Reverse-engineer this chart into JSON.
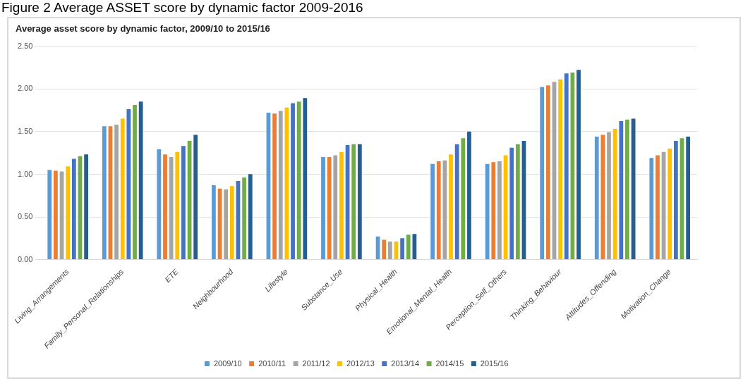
{
  "chart_data": {
    "type": "bar",
    "title": "Average asset score by dynamic factor, 2009/10 to 2015/16",
    "annotations": [
      "Figure 2 Average ASSET score by dynamic factor 2009-2016"
    ],
    "categories": [
      "Living_Arrangements",
      "Family_Personal_Relationships",
      "ETE",
      "Neighbourhood",
      "Lifestyle",
      "Substance_Use",
      "Physical_Health",
      "Emotional_Mental_Health",
      "Perception_Self_Others",
      "Thinking_Behaviour",
      "Attitudes_Offending",
      "Motivation_Change"
    ],
    "series": [
      {
        "name": "2009/10",
        "color": "#5b9bd5",
        "values": [
          1.06,
          1.57,
          1.3,
          0.88,
          1.73,
          1.21,
          0.28,
          1.13,
          1.13,
          2.03,
          1.45,
          1.2
        ]
      },
      {
        "name": "2010/11",
        "color": "#ed7d31",
        "values": [
          1.05,
          1.57,
          1.24,
          0.84,
          1.72,
          1.21,
          0.24,
          1.16,
          1.15,
          2.05,
          1.47,
          1.23
        ]
      },
      {
        "name": "2011/12",
        "color": "#a5a5a5",
        "values": [
          1.04,
          1.59,
          1.21,
          0.83,
          1.75,
          1.23,
          0.22,
          1.17,
          1.16,
          2.09,
          1.5,
          1.27
        ]
      },
      {
        "name": "2012/13",
        "color": "#ffc000",
        "values": [
          1.1,
          1.66,
          1.27,
          0.87,
          1.79,
          1.27,
          0.22,
          1.24,
          1.23,
          2.12,
          1.54,
          1.31
        ]
      },
      {
        "name": "2013/14",
        "color": "#4472c4",
        "values": [
          1.19,
          1.77,
          1.34,
          0.93,
          1.84,
          1.35,
          0.26,
          1.36,
          1.32,
          2.19,
          1.63,
          1.4
        ]
      },
      {
        "name": "2014/15",
        "color": "#70ad47",
        "values": [
          1.22,
          1.82,
          1.4,
          0.97,
          1.86,
          1.36,
          0.3,
          1.43,
          1.36,
          2.2,
          1.65,
          1.43
        ]
      },
      {
        "name": "2015/16",
        "color": "#255e91",
        "values": [
          1.24,
          1.86,
          1.47,
          1.01,
          1.9,
          1.36,
          0.31,
          1.51,
          1.4,
          2.23,
          1.66,
          1.45
        ]
      }
    ],
    "ylim": [
      0,
      2.5
    ],
    "yticks": [
      {
        "value": 0,
        "label": "0.00"
      },
      {
        "value": 0.5,
        "label": "0.50"
      },
      {
        "value": 1,
        "label": "1.00"
      },
      {
        "value": 1.5,
        "label": "1.50"
      },
      {
        "value": 2,
        "label": "2.00"
      },
      {
        "value": 2.5,
        "label": "2.50"
      }
    ],
    "grid": "y",
    "legend": "bottom"
  }
}
